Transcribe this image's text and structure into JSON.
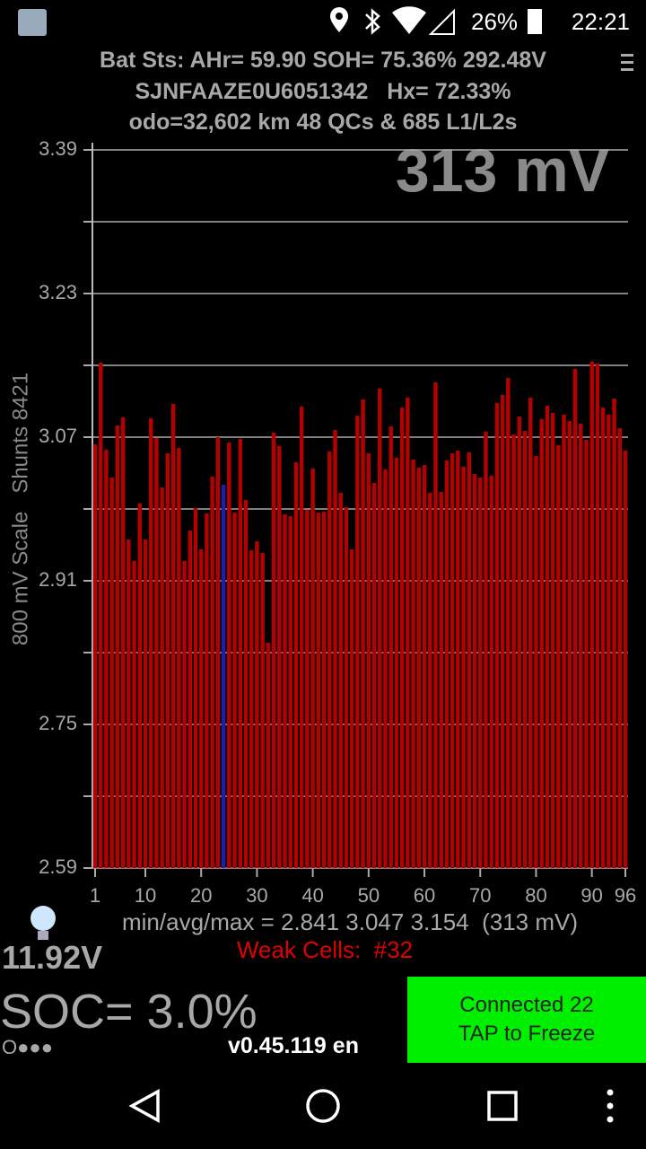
{
  "status_bar": {
    "battery": "26%",
    "time": "22:21"
  },
  "header": {
    "line1": "Bat Sts: AHr= 59.90 SOH= 75.36% 292.48V",
    "line2": "SJNFAAZE0U6051342   Hx= 72.33%",
    "line3": "odo=32,602 km 48 QCs & 685 L1/L2s"
  },
  "chart_data": {
    "type": "bar",
    "annotation": "313 mV",
    "y_label": "800 mV Scale   Shunts 8421",
    "x": [
      1,
      2,
      3,
      4,
      5,
      6,
      7,
      8,
      9,
      10,
      11,
      12,
      13,
      14,
      15,
      16,
      17,
      18,
      19,
      20,
      21,
      22,
      23,
      24,
      25,
      26,
      27,
      28,
      29,
      30,
      31,
      32,
      33,
      34,
      35,
      36,
      37,
      38,
      39,
      40,
      41,
      42,
      43,
      44,
      45,
      46,
      47,
      48,
      49,
      50,
      51,
      52,
      53,
      54,
      55,
      56,
      57,
      58,
      59,
      60,
      61,
      62,
      63,
      64,
      65,
      66,
      67,
      68,
      69,
      70,
      71,
      72,
      73,
      74,
      75,
      76,
      77,
      78,
      79,
      80,
      81,
      82,
      83,
      84,
      85,
      86,
      87,
      88,
      89,
      90,
      91,
      92,
      93,
      94,
      95,
      96
    ],
    "values": [
      3.062,
      3.153,
      3.056,
      3.025,
      3.083,
      3.092,
      2.956,
      2.932,
      2.996,
      2.956,
      3.091,
      3.069,
      3.014,
      3.052,
      3.107,
      3.058,
      2.932,
      2.966,
      2.991,
      2.945,
      2.985,
      3.026,
      3.07,
      3.017,
      3.064,
      2.986,
      3.068,
      3.0,
      2.944,
      2.954,
      2.941,
      2.841,
      3.075,
      3.06,
      2.984,
      2.982,
      3.042,
      3.104,
      2.989,
      3.035,
      2.986,
      2.987,
      3.054,
      3.078,
      3.008,
      2.992,
      2.945,
      3.094,
      3.112,
      3.052,
      3.019,
      3.124,
      3.034,
      3.082,
      3.047,
      3.103,
      3.114,
      3.045,
      3.036,
      3.039,
      3.008,
      3.131,
      3.009,
      3.044,
      3.052,
      3.055,
      3.037,
      3.053,
      3.029,
      3.025,
      3.076,
      3.027,
      3.108,
      3.117,
      3.136,
      3.073,
      3.093,
      3.077,
      3.114,
      3.049,
      3.09,
      3.105,
      3.097,
      3.061,
      3.095,
      3.088,
      3.146,
      3.085,
      3.067,
      3.154,
      3.152,
      3.103,
      3.095,
      3.113,
      3.08,
      3.055
    ],
    "color": "#b30000",
    "highlight_cell": 24,
    "highlight_color": "#1c1cb0",
    "xlim": [
      1,
      96
    ],
    "xticks": [
      1,
      10,
      20,
      30,
      40,
      50,
      60,
      70,
      80,
      90,
      96
    ],
    "ylim": [
      2.59,
      3.39
    ],
    "yticks": [
      {
        "value": 2.59,
        "label": "2.59"
      },
      {
        "value": 2.75,
        "label": "2.75"
      },
      {
        "value": 2.91,
        "label": "2.91"
      },
      {
        "value": 3.07,
        "label": "3.07"
      },
      {
        "value": 3.23,
        "label": "3.23"
      },
      {
        "value": 3.39,
        "label": "3.39"
      }
    ],
    "minor_yticks": [
      2.67,
      2.83,
      2.99,
      3.15,
      3.31
    ],
    "grid": true
  },
  "stats": "min/avg/max = 2.841 3.047 3.154  (313 mV)",
  "weak_cells": "Weak Cells:  #32",
  "aux_voltage": "11.92V",
  "soc": "SOC= 3.0%",
  "dots": "O●●●",
  "version": "v0.45.119 en",
  "button": {
    "line1": "Connected 22",
    "line2": "TAP to Freeze"
  }
}
